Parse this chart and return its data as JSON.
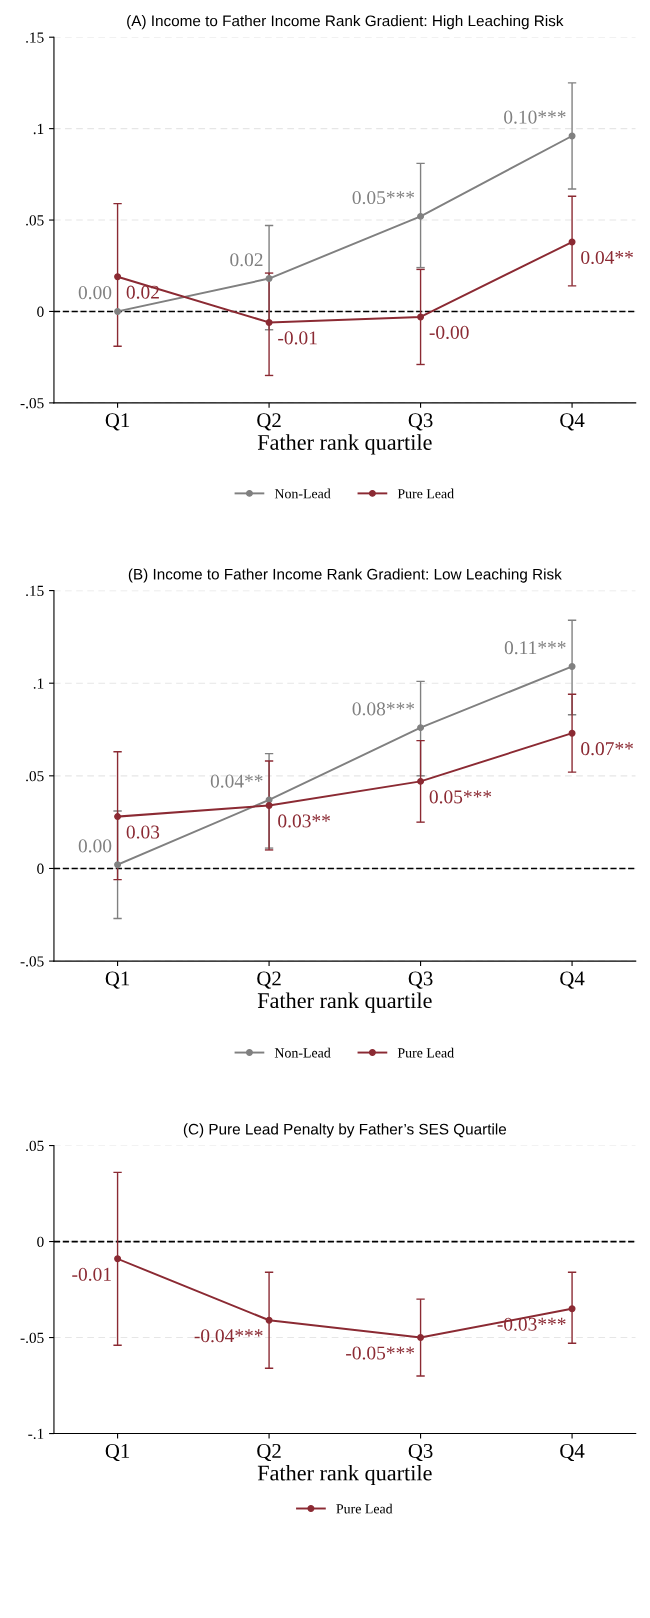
{
  "chart_data": [
    {
      "type": "line",
      "title": "(A) Income to Father Income Rank Gradient: High Leaching Risk",
      "xlabel": "Father rank quartile",
      "categories": [
        "Q1",
        "Q2",
        "Q3",
        "Q4"
      ],
      "series": [
        {
          "name": "Non-Lead",
          "color": "#808080",
          "values": [
            0.0,
            0.018,
            0.052,
            0.096
          ],
          "errors": [
            null,
            [
              -0.01,
              0.047
            ],
            [
              0.024,
              0.081
            ],
            [
              0.067,
              0.125
            ]
          ],
          "value_labels": [
            "0.00",
            "0.02",
            "0.05***",
            "0.10***"
          ]
        },
        {
          "name": "Pure Lead",
          "color": "#8b2a33",
          "values": [
            0.019,
            -0.006,
            -0.003,
            0.038
          ],
          "errors": [
            [
              -0.019,
              0.059
            ],
            [
              -0.035,
              0.021
            ],
            [
              -0.029,
              0.023
            ],
            [
              0.014,
              0.063
            ]
          ],
          "value_labels": [
            "0.02",
            "-0.01",
            "-0.00",
            "0.04**"
          ]
        }
      ],
      "ylim": [
        -0.05,
        0.15
      ],
      "yticks": [
        {
          "value": -0.05,
          "label": "-.05"
        },
        0,
        {
          "value": 0.05,
          "label": ".05"
        },
        {
          "value": 0.1,
          "label": ".1"
        },
        {
          "value": 0.15,
          "label": ".15"
        }
      ],
      "grid": "y",
      "legend": "bottom",
      "marker": "circle",
      "line_style": "solid",
      "ref_lines": [
        {
          "axis": "y",
          "value": 0,
          "line_style": "dashed",
          "color": "#000000"
        }
      ]
    },
    {
      "type": "line",
      "title": "(B) Income to Father Income Rank Gradient: Low Leaching Risk",
      "xlabel": "Father rank quartile",
      "categories": [
        "Q1",
        "Q2",
        "Q3",
        "Q4"
      ],
      "series": [
        {
          "name": "Non-Lead",
          "color": "#808080",
          "values": [
            0.002,
            0.037,
            0.076,
            0.109
          ],
          "errors": [
            [
              -0.027,
              0.031
            ],
            [
              0.011,
              0.062
            ],
            [
              0.05,
              0.101
            ],
            [
              0.083,
              0.134
            ]
          ],
          "value_labels": [
            "0.00",
            "0.04**",
            "0.08***",
            "0.11***"
          ]
        },
        {
          "name": "Pure Lead",
          "color": "#8b2a33",
          "values": [
            0.028,
            0.034,
            0.047,
            0.073
          ],
          "errors": [
            [
              -0.006,
              0.063
            ],
            [
              0.01,
              0.058
            ],
            [
              0.025,
              0.069
            ],
            [
              0.052,
              0.094
            ]
          ],
          "value_labels": [
            "0.03",
            "0.03**",
            "0.05***",
            "0.07**"
          ]
        }
      ],
      "ylim": [
        -0.05,
        0.15
      ],
      "yticks": [
        {
          "value": -0.05,
          "label": "-.05"
        },
        0,
        {
          "value": 0.05,
          "label": ".05"
        },
        {
          "value": 0.1,
          "label": ".1"
        },
        {
          "value": 0.15,
          "label": ".15"
        }
      ],
      "grid": "y",
      "legend": "bottom",
      "marker": "circle",
      "line_style": "solid",
      "ref_lines": [
        {
          "axis": "y",
          "value": 0,
          "line_style": "dashed",
          "color": "#000000"
        }
      ]
    },
    {
      "type": "line",
      "title": "(C) Pure Lead Penalty by Father’s SES Quartile",
      "xlabel": "Father rank quartile",
      "categories": [
        "Q1",
        "Q2",
        "Q3",
        "Q4"
      ],
      "series": [
        {
          "name": "Pure Lead",
          "color": "#8b2a33",
          "values": [
            -0.009,
            -0.041,
            -0.05,
            -0.035
          ],
          "errors": [
            [
              -0.054,
              0.036
            ],
            [
              -0.066,
              -0.016
            ],
            [
              -0.07,
              -0.03
            ],
            [
              -0.053,
              -0.016
            ]
          ],
          "value_labels": [
            "-0.01",
            "-0.04***",
            "-0.05***",
            "-0.03***"
          ]
        }
      ],
      "ylim": [
        -0.1,
        0.05
      ],
      "yticks": [
        {
          "value": -0.1,
          "label": "-.1"
        },
        {
          "value": -0.05,
          "label": "-.05"
        },
        0,
        {
          "value": 0.05,
          "label": ".05"
        }
      ],
      "grid": "y",
      "legend": "bottom",
      "marker": "circle",
      "line_style": "solid",
      "ref_lines": [
        {
          "axis": "y",
          "value": 0,
          "line_style": "dashed",
          "color": "#000000"
        }
      ]
    }
  ]
}
